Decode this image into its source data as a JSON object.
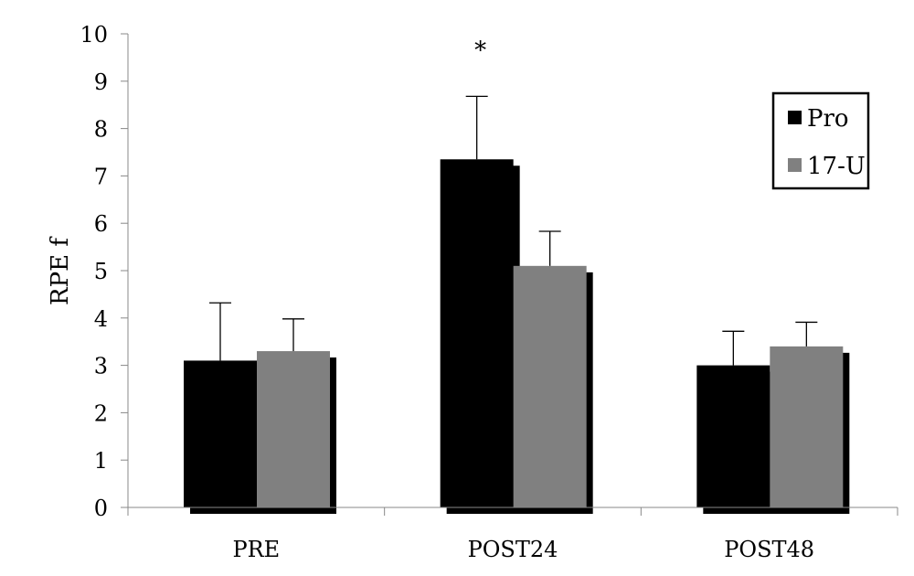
{
  "chart_data": {
    "type": "bar",
    "title": "",
    "xlabel": "",
    "ylabel": "RPE f",
    "ylim": [
      0,
      10
    ],
    "yticks": [
      "0",
      "1",
      "2",
      "3",
      "4",
      "5",
      "6",
      "7",
      "8",
      "9",
      "10"
    ],
    "categories": [
      "PRE",
      "POST24",
      "POST48"
    ],
    "series": [
      {
        "name": "Pro",
        "color": "#000000",
        "values": [
          3.1,
          7.35,
          3.0
        ],
        "errors": [
          1.22,
          1.33,
          0.72
        ]
      },
      {
        "name": "17-U",
        "color": "#808080",
        "values": [
          3.3,
          5.1,
          3.4
        ],
        "errors": [
          0.68,
          0.73,
          0.51
        ]
      }
    ],
    "annotations": [
      {
        "text": "*",
        "category": "POST24"
      }
    ],
    "grid": false,
    "legend": "top-right",
    "error_bars": "upper"
  }
}
